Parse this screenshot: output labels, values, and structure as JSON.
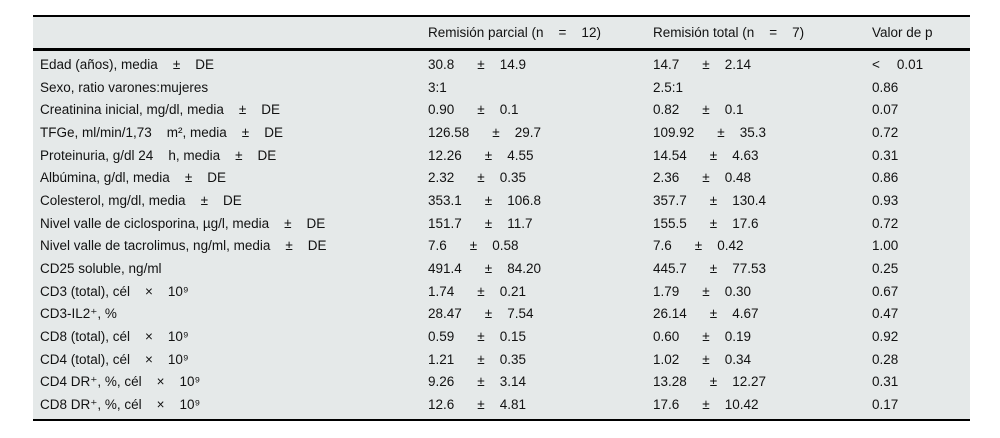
{
  "table": {
    "pm_symbol": "±",
    "header": {
      "label": "",
      "parcial": "Remisión parcial (n    =    12)",
      "total": "Remisión total (n    =    7)",
      "p": "Valor de p"
    },
    "colors": {
      "table_background": "#e5e9e9",
      "rule": "#000000",
      "text": "#121212",
      "page_background": "#ffffff"
    },
    "rows": [
      {
        "label": "Edad (años), media    ±    DE",
        "parcial": {
          "mean": "30.8",
          "sd": "14.9"
        },
        "total": {
          "mean": "14.7",
          "sd": "2.14"
        },
        "p": {
          "prefix": "<",
          "value": "0.01"
        }
      },
      {
        "label": "Sexo, ratio varones:mujeres",
        "parcial": {
          "mean": "3:1"
        },
        "total": {
          "mean": "2.5:1"
        },
        "p": {
          "value": "0.86"
        }
      },
      {
        "label": "Creatinina inicial, mg/dl, media    ±    DE",
        "parcial": {
          "mean": "0.90",
          "sd": "0.1"
        },
        "total": {
          "mean": "0.82",
          "sd": "0.1"
        },
        "p": {
          "value": "0.07"
        }
      },
      {
        "label": "TFGe, ml/min/1,73    m², media    ±    DE",
        "parcial": {
          "mean": "126.58",
          "sd": "29.7"
        },
        "total": {
          "mean": "109.92",
          "sd": "35.3"
        },
        "p": {
          "value": "0.72"
        }
      },
      {
        "label": "Proteinuria, g/dl 24    h, media    ±    DE",
        "parcial": {
          "mean": "12.26",
          "sd": "4.55"
        },
        "total": {
          "mean": "14.54",
          "sd": "4.63"
        },
        "p": {
          "value": "0.31"
        }
      },
      {
        "label": "Albúmina, g/dl, media    ±    DE",
        "parcial": {
          "mean": "2.32",
          "sd": "0.35"
        },
        "total": {
          "mean": "2.36",
          "sd": "0.48"
        },
        "p": {
          "value": "0.86"
        }
      },
      {
        "label": "Colesterol, mg/dl, media    ±    DE",
        "parcial": {
          "mean": "353.1",
          "sd": "106.8"
        },
        "total": {
          "mean": "357.7",
          "sd": "130.4"
        },
        "p": {
          "value": "0.93"
        }
      },
      {
        "label": "Nivel valle de ciclosporina, µg/l, media    ±    DE",
        "parcial": {
          "mean": "151.7",
          "sd": "11.7"
        },
        "total": {
          "mean": "155.5",
          "sd": "17.6"
        },
        "p": {
          "value": "0.72"
        }
      },
      {
        "label": "Nivel valle de tacrolimus, ng/ml, media    ±    DE",
        "parcial": {
          "mean": "7.6",
          "sd": "0.58"
        },
        "total": {
          "mean": "7.6",
          "sd": "0.42"
        },
        "p": {
          "value": "1.00"
        }
      },
      {
        "label": "CD25 soluble, ng/ml",
        "parcial": {
          "mean": "491.4",
          "sd": "84.20"
        },
        "total": {
          "mean": "445.7",
          "sd": "77.53"
        },
        "p": {
          "value": "0.25"
        }
      },
      {
        "label": "CD3 (total), cél    ×    10⁹",
        "parcial": {
          "mean": "1.74",
          "sd": "0.21"
        },
        "total": {
          "mean": "1.79",
          "sd": "0.30"
        },
        "p": {
          "value": "0.67"
        }
      },
      {
        "label": "CD3-IL2⁺, %",
        "parcial": {
          "mean": "28.47",
          "sd": "7.54"
        },
        "total": {
          "mean": "26.14",
          "sd": "4.67"
        },
        "p": {
          "value": "0.47"
        }
      },
      {
        "label": "CD8 (total), cél    ×    10⁹",
        "parcial": {
          "mean": "0.59",
          "sd": "0.15"
        },
        "total": {
          "mean": "0.60",
          "sd": "0.19"
        },
        "p": {
          "value": "0.92"
        }
      },
      {
        "label": "CD4 (total), cél    ×    10⁹",
        "parcial": {
          "mean": "1.21",
          "sd": "0.35"
        },
        "total": {
          "mean": "1.02",
          "sd": "0.34"
        },
        "p": {
          "value": "0.28"
        }
      },
      {
        "label": "CD4 DR⁺, %, cél    ×    10⁹",
        "parcial": {
          "mean": "9.26",
          "sd": "3.14"
        },
        "total": {
          "mean": "13.28",
          "sd": "12.27"
        },
        "p": {
          "value": "0.31"
        }
      },
      {
        "label": "CD8 DR⁺, %, cél    ×    10⁹",
        "parcial": {
          "mean": "12.6",
          "sd": "4.81"
        },
        "total": {
          "mean": "17.6",
          "sd": "10.42"
        },
        "p": {
          "value": "0.17"
        }
      }
    ]
  }
}
